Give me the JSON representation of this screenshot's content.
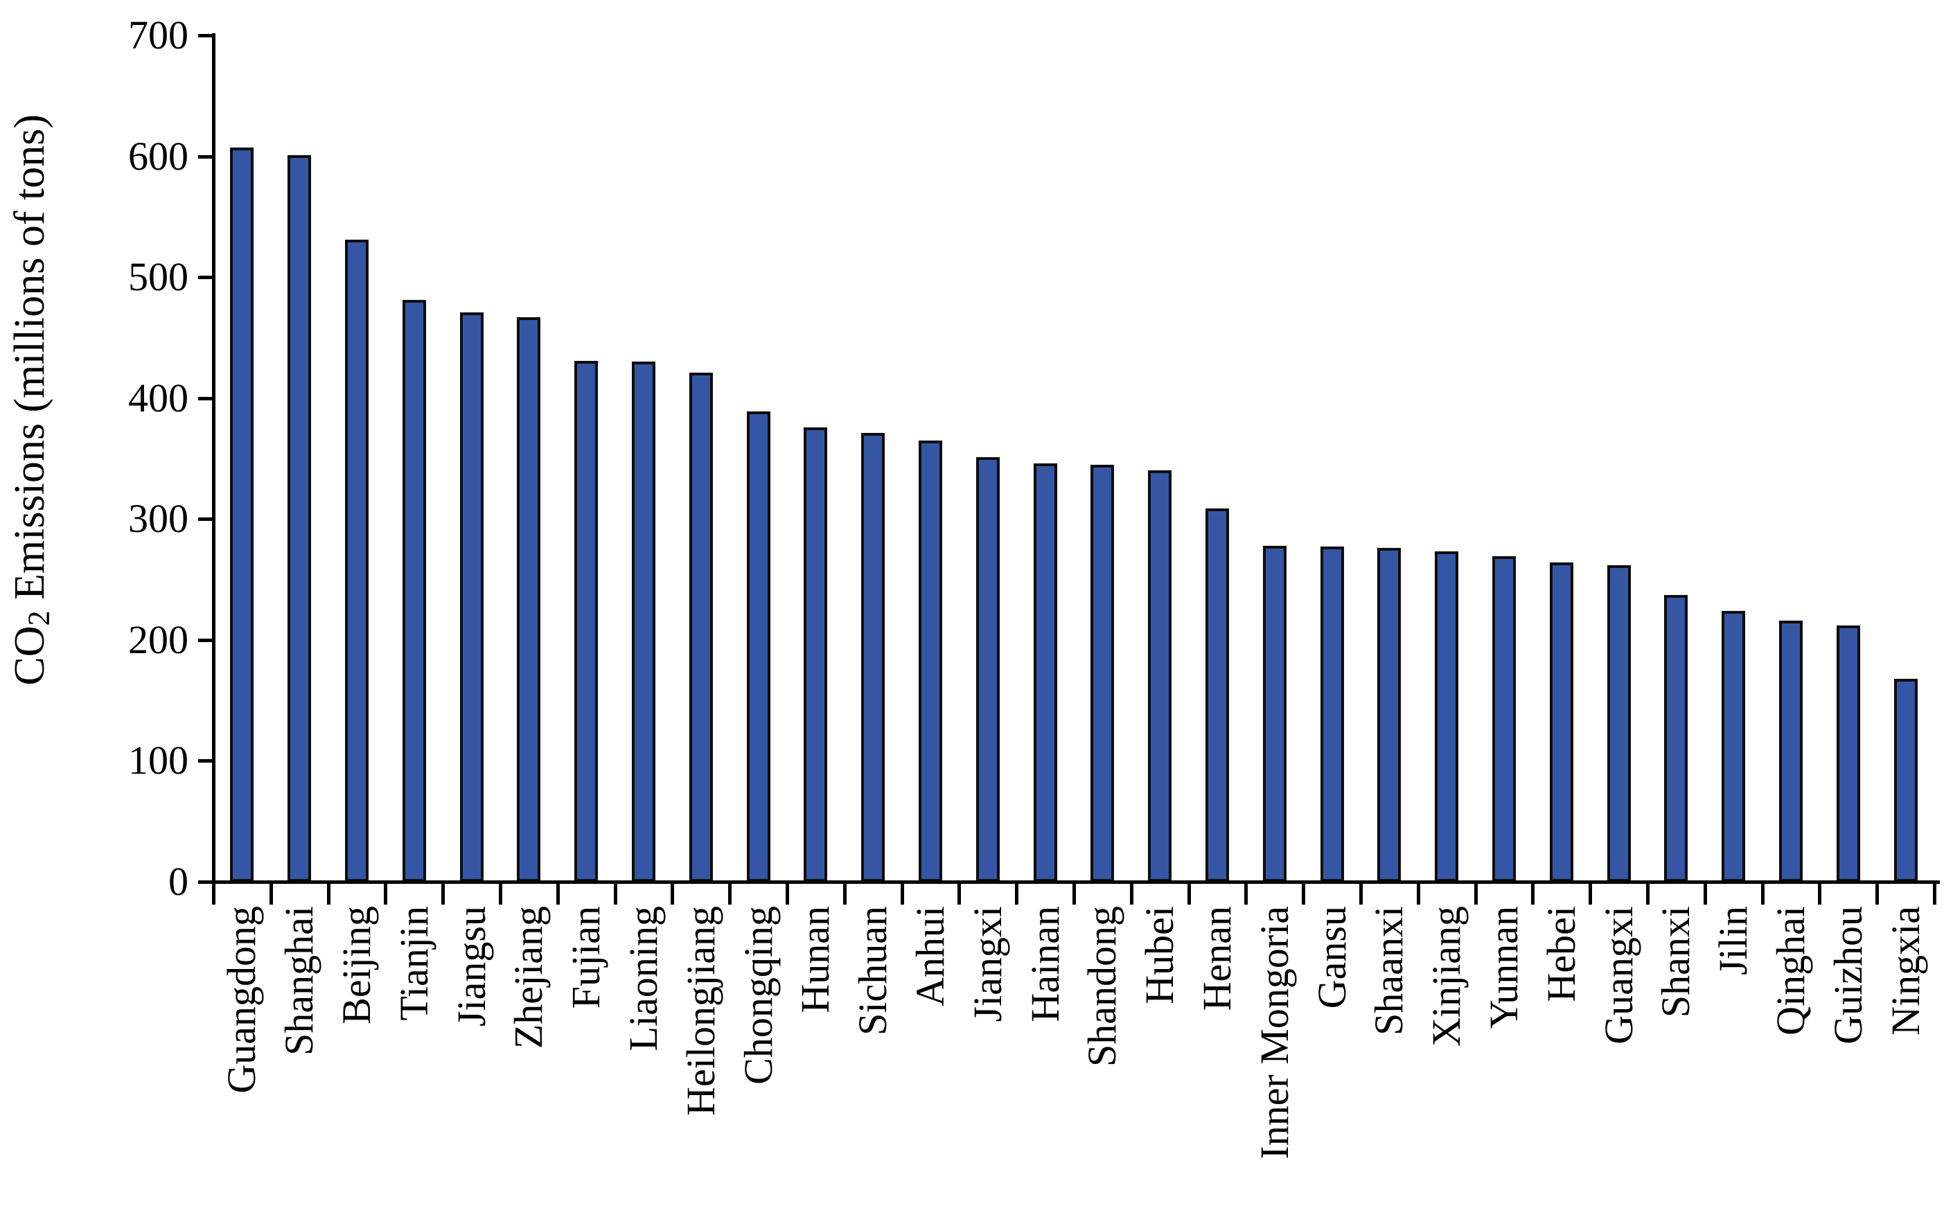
{
  "chart_data": {
    "type": "bar",
    "title": "",
    "xlabel": "",
    "ylabel": "CO2 Emissions (millions of tons)",
    "ylabel_prefix": "CO",
    "ylabel_sub": "2",
    "ylabel_suffix": " Emissions (millions of tons)",
    "categories": [
      "Guangdong",
      "Shanghai",
      "Beijing",
      "Tianjin",
      "Jiangsu",
      "Zhejiang",
      "Fujian",
      "Liaoning",
      "Heilongjiang",
      "Chongqing",
      "Hunan",
      "Sichuan",
      "Anhui",
      "Jiangxi",
      "Hainan",
      "Shandong",
      "Hubei",
      "Henan",
      "Inner Mongoria",
      "Gansu",
      "Shaanxi",
      "Xinjiang",
      "Yunnan",
      "Hebei",
      "Guangxi",
      "Shanxi",
      "Jilin",
      "Qinghai",
      "Guizhou",
      "Ningxia"
    ],
    "values": [
      607,
      601,
      531,
      481,
      471,
      467,
      431,
      430,
      421,
      389,
      376,
      371,
      365,
      351,
      346,
      345,
      340,
      309,
      278,
      277,
      276,
      273,
      269,
      264,
      262,
      237,
      224,
      216,
      212,
      168
    ],
    "ylim": [
      0,
      700
    ],
    "ytick_labels": [
      "0",
      "100",
      "200",
      "300",
      "400",
      "500",
      "600",
      "700"
    ],
    "ytick_step": 100,
    "grid": false,
    "legend": "none",
    "colors": {
      "bar_fill": "#3456A4",
      "bar_border": "#0d0d0d",
      "axis": "#000000",
      "text": "#000000",
      "background": "#ffffff"
    }
  }
}
